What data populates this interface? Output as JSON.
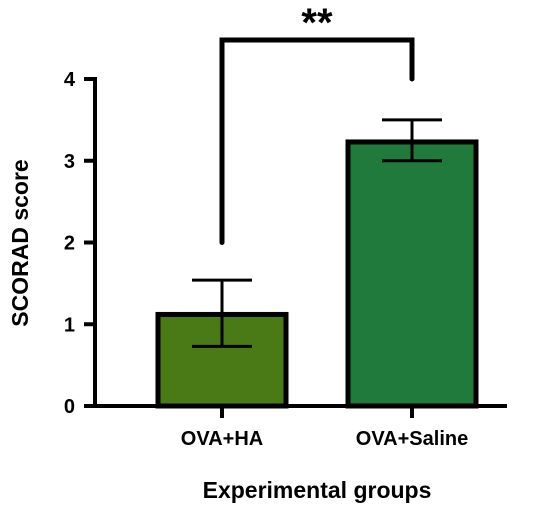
{
  "chart_data": {
    "type": "bar",
    "categories": [
      "OVA+HA",
      "OVA+Saline"
    ],
    "values": [
      1.12,
      3.23
    ],
    "errors": [
      {
        "low": 0.73,
        "high": 1.54
      },
      {
        "low": 3.0,
        "high": 3.5
      }
    ],
    "colors": [
      "#4a7a16",
      "#1f7a3c"
    ],
    "xlabel": "Experimental groups",
    "ylabel": "SCORAD score",
    "ylim": [
      0,
      4
    ],
    "yticks": [
      "0",
      "1",
      "2",
      "3",
      "4"
    ],
    "grid": false,
    "significance": {
      "label": "**",
      "from_category": "OVA+HA",
      "to_category": "OVA+Saline",
      "left_start": 2.0,
      "right_start": 4.0
    }
  }
}
